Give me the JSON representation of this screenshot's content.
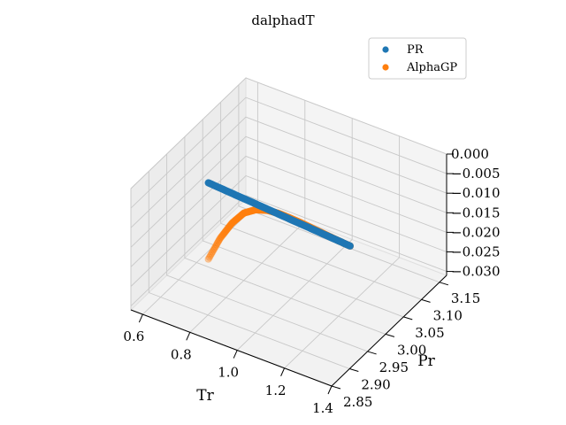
{
  "chart_data": {
    "type": "scatter",
    "projection": "3d",
    "title": "dalphadT",
    "xlabel": "Tr",
    "ylabel": "Pr",
    "zlabel": "",
    "xlim": [
      0.55,
      1.4
    ],
    "ylim": [
      2.85,
      3.17
    ],
    "zlim": [
      -0.031,
      0.0
    ],
    "xticks": [
      "0.6",
      "0.8",
      "1.0",
      "1.2",
      "1.4"
    ],
    "yticks": [
      "2.85",
      "2.90",
      "2.95",
      "3.00",
      "3.05",
      "3.10",
      "3.15"
    ],
    "zticks": [
      "0.000",
      "−0.005",
      "−0.010",
      "−0.015",
      "−0.020",
      "−0.025",
      "−0.030"
    ],
    "grid": true,
    "legend": {
      "position": "top-right"
    },
    "series": [
      {
        "name": "PR",
        "color": "#1f77b4",
        "x": [
          0.65,
          0.7,
          0.75,
          0.8,
          0.85,
          0.9,
          0.95,
          1.0,
          1.05,
          1.1,
          1.15,
          1.2,
          1.25
        ],
        "y": [
          3.0,
          3.0,
          3.0,
          3.0,
          3.0,
          3.0,
          3.0,
          3.0,
          3.0,
          3.0,
          3.0,
          3.0,
          3.0
        ],
        "z": [
          -0.0095,
          -0.0097,
          -0.0099,
          -0.0101,
          -0.0103,
          -0.0105,
          -0.0107,
          -0.0109,
          -0.0111,
          -0.0113,
          -0.0115,
          -0.0117,
          -0.0119
        ]
      },
      {
        "name": "AlphaGP",
        "color": "#ff7f0e",
        "x": [
          0.65,
          0.7,
          0.75,
          0.8,
          0.85,
          0.9,
          0.95,
          1.0,
          1.05,
          1.1,
          1.15,
          1.2,
          1.25
        ],
        "y": [
          3.0,
          3.0,
          3.0,
          3.0,
          3.0,
          3.0,
          3.0,
          3.0,
          3.0,
          3.0,
          3.0,
          3.0,
          3.0
        ],
        "z": [
          -0.029,
          -0.0225,
          -0.0175,
          -0.0138,
          -0.0118,
          -0.0108,
          -0.0105,
          -0.0106,
          -0.0108,
          -0.0111,
          -0.0114,
          -0.0117,
          -0.0119
        ]
      }
    ]
  }
}
